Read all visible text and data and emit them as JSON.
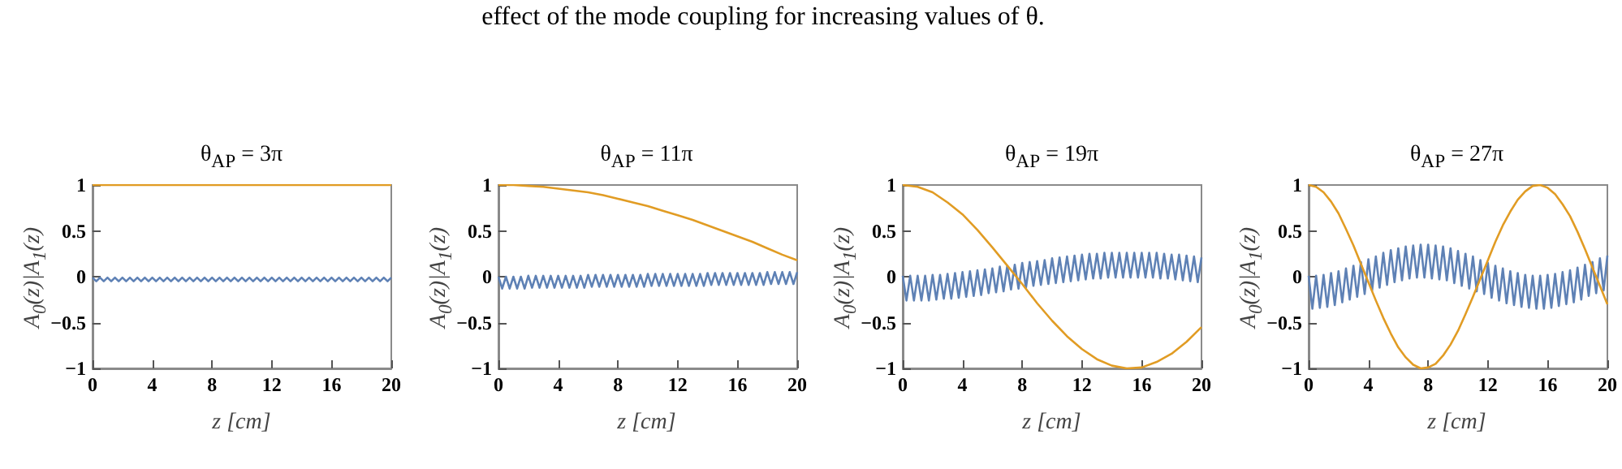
{
  "chart_data": [
    {
      "type": "line",
      "title": "θ$_{AP}$ = 3π",
      "xlabel": "z [cm]",
      "ylabel": "A$_{0}$(z)|A$_{1}$(z)",
      "annotations": [
        "effect of the mode coupling for increasing values of θ."
      ],
      "xlim": [
        0,
        20
      ],
      "ylim": [
        -1,
        1
      ],
      "xticks": [
        0,
        4,
        8,
        12,
        16,
        20
      ],
      "yticks": [
        -1,
        -0.5,
        0,
        0.5,
        1
      ],
      "grid": false,
      "x": [
        0,
        0.25,
        0.5,
        0.75,
        1,
        1.25,
        1.5,
        1.75,
        2,
        2.25,
        2.5,
        2.75,
        3,
        3.25,
        3.5,
        3.75,
        4,
        4.25,
        4.5,
        4.75,
        5,
        5.25,
        5.5,
        5.75,
        6,
        6.25,
        6.5,
        6.75,
        7,
        7.25,
        7.5,
        7.75,
        8,
        8.25,
        8.5,
        8.75,
        9,
        9.25,
        9.5,
        9.75,
        10,
        10.25,
        10.5,
        10.75,
        11,
        11.25,
        11.5,
        11.75,
        12,
        12.25,
        12.5,
        12.75,
        13,
        13.25,
        13.5,
        13.75,
        14,
        14.25,
        14.5,
        14.75,
        15,
        15.25,
        15.5,
        15.75,
        16,
        16.25,
        16.5,
        16.75,
        17,
        17.25,
        17.5,
        17.75,
        18,
        18.25,
        18.5,
        18.75,
        19,
        19.25,
        19.5,
        19.75,
        20
      ],
      "series": [
        {
          "color": "#5e81b5",
          "values": [
            -0.01,
            -0.05,
            -0.01,
            -0.05,
            -0.01,
            -0.05,
            -0.01,
            -0.05,
            -0.01,
            -0.05,
            -0.01,
            -0.05,
            -0.01,
            -0.05,
            -0.01,
            -0.05,
            -0.01,
            -0.05,
            -0.01,
            -0.05,
            -0.01,
            -0.05,
            -0.01,
            -0.05,
            -0.01,
            -0.05,
            -0.01,
            -0.05,
            -0.01,
            -0.05,
            -0.01,
            -0.05,
            -0.01,
            -0.05,
            -0.01,
            -0.05,
            -0.01,
            -0.05,
            -0.01,
            -0.05,
            -0.01,
            -0.05,
            -0.01,
            -0.05,
            -0.01,
            -0.05,
            -0.01,
            -0.05,
            -0.01,
            -0.05,
            -0.01,
            -0.05,
            -0.01,
            -0.05,
            -0.01,
            -0.05,
            -0.01,
            -0.05,
            -0.01,
            -0.05,
            -0.01,
            -0.05,
            -0.01,
            -0.05,
            -0.01,
            -0.05,
            -0.01,
            -0.05,
            -0.01,
            -0.05,
            -0.01,
            -0.05,
            -0.01,
            -0.05,
            -0.01,
            -0.05,
            -0.01,
            -0.05,
            -0.01,
            -0.05,
            -0.01
          ]
        },
        {
          "color": "#e19c24",
          "x": [
            0,
            20
          ],
          "values": [
            1,
            1
          ]
        }
      ]
    },
    {
      "type": "line",
      "title": "θ$_{AP}$ = 11π",
      "xlabel": "z [cm]",
      "ylabel": "A$_{0}$(z)|A$_{1}$(z)",
      "xlim": [
        0,
        20
      ],
      "ylim": [
        -1,
        1
      ],
      "xticks": [
        0,
        4,
        8,
        12,
        16,
        20
      ],
      "yticks": [
        -1,
        -0.5,
        0,
        0.5,
        1
      ],
      "grid": false,
      "x": [
        0,
        0.25,
        0.5,
        0.75,
        1,
        1.25,
        1.5,
        1.75,
        2,
        2.25,
        2.5,
        2.75,
        3,
        3.25,
        3.5,
        3.75,
        4,
        4.25,
        4.5,
        4.75,
        5,
        5.25,
        5.5,
        5.75,
        6,
        6.25,
        6.5,
        6.75,
        7,
        7.25,
        7.5,
        7.75,
        8,
        8.25,
        8.5,
        8.75,
        9,
        9.25,
        9.5,
        9.75,
        10,
        10.25,
        10.5,
        10.75,
        11,
        11.25,
        11.5,
        11.75,
        12,
        12.25,
        12.5,
        12.75,
        13,
        13.25,
        13.5,
        13.75,
        14,
        14.25,
        14.5,
        14.75,
        15,
        15.25,
        15.5,
        15.75,
        16,
        16.25,
        16.5,
        16.75,
        17,
        17.25,
        17.5,
        17.75,
        18,
        18.25,
        18.5,
        18.75,
        19,
        19.25,
        19.5,
        19.75,
        20
      ],
      "series": [
        {
          "color": "#5e81b5",
          "values": [
            0,
            -0.13,
            0,
            -0.13,
            0,
            -0.13,
            0,
            -0.13,
            0.01,
            -0.12,
            0.01,
            -0.12,
            0.01,
            -0.12,
            0.01,
            -0.12,
            0.01,
            -0.12,
            0.01,
            -0.12,
            0.01,
            -0.12,
            0.01,
            -0.12,
            0.02,
            -0.11,
            0.02,
            -0.11,
            0.02,
            -0.11,
            0.02,
            -0.11,
            0.02,
            -0.11,
            0.02,
            -0.11,
            0.02,
            -0.11,
            0.02,
            -0.11,
            0.03,
            -0.1,
            0.03,
            -0.1,
            0.03,
            -0.1,
            0.03,
            -0.1,
            0.03,
            -0.1,
            0.03,
            -0.1,
            0.03,
            -0.1,
            0.03,
            -0.1,
            0.04,
            -0.09,
            0.04,
            -0.09,
            0.04,
            -0.09,
            0.04,
            -0.09,
            0.04,
            -0.09,
            0.04,
            -0.09,
            0.04,
            -0.09,
            0.04,
            -0.09,
            0.05,
            -0.08,
            0.05,
            -0.08,
            0.05,
            -0.08,
            0.05,
            -0.08,
            0.05
          ]
        },
        {
          "color": "#e19c24",
          "x": [
            0,
            1,
            2,
            3,
            4,
            5,
            6,
            7,
            8,
            9,
            10,
            11,
            12,
            13,
            14,
            15,
            16,
            17,
            18,
            19,
            20
          ],
          "values": [
            1,
            1,
            0.99,
            0.98,
            0.96,
            0.94,
            0.92,
            0.89,
            0.85,
            0.81,
            0.77,
            0.72,
            0.67,
            0.62,
            0.56,
            0.5,
            0.44,
            0.38,
            0.31,
            0.24,
            0.18
          ]
        }
      ]
    },
    {
      "type": "line",
      "title": "θ$_{AP}$ = 19π",
      "xlabel": "z [cm]",
      "ylabel": "A$_{0}$(z)|A$_{1}$(z)",
      "xlim": [
        0,
        20
      ],
      "ylim": [
        -1,
        1
      ],
      "xticks": [
        0,
        4,
        8,
        12,
        16,
        20
      ],
      "yticks": [
        -1,
        -0.5,
        0,
        0.5,
        1
      ],
      "grid": false,
      "x": [
        0,
        0.25,
        0.5,
        0.75,
        1,
        1.25,
        1.5,
        1.75,
        2,
        2.25,
        2.5,
        2.75,
        3,
        3.25,
        3.5,
        3.75,
        4,
        4.25,
        4.5,
        4.75,
        5,
        5.25,
        5.5,
        5.75,
        6,
        6.25,
        6.5,
        6.75,
        7,
        7.25,
        7.5,
        7.75,
        8,
        8.25,
        8.5,
        8.75,
        9,
        9.25,
        9.5,
        9.75,
        10,
        10.25,
        10.5,
        10.75,
        11,
        11.25,
        11.5,
        11.75,
        12,
        12.25,
        12.5,
        12.75,
        13,
        13.25,
        13.5,
        13.75,
        14,
        14.25,
        14.5,
        14.75,
        15,
        15.25,
        15.5,
        15.75,
        16,
        16.25,
        16.5,
        16.75,
        17,
        17.25,
        17.5,
        17.75,
        18,
        18.25,
        18.5,
        18.75,
        19,
        19.25,
        19.5,
        19.75,
        20
      ],
      "series": [
        {
          "color": "#5e81b5",
          "values": [
            0.01,
            -0.26,
            0.01,
            -0.26,
            0.01,
            -0.26,
            0.01,
            -0.26,
            0.02,
            -0.25,
            0.02,
            -0.24,
            0.03,
            -0.24,
            0.04,
            -0.23,
            0.05,
            -0.22,
            0.06,
            -0.21,
            0.07,
            -0.2,
            0.08,
            -0.18,
            0.09,
            -0.17,
            0.11,
            -0.16,
            0.12,
            -0.14,
            0.13,
            -0.13,
            0.15,
            -0.12,
            0.16,
            -0.1,
            0.17,
            -0.09,
            0.18,
            -0.08,
            0.2,
            -0.07,
            0.21,
            -0.06,
            0.22,
            -0.05,
            0.23,
            -0.04,
            0.24,
            -0.03,
            0.25,
            -0.02,
            0.25,
            -0.02,
            0.26,
            -0.01,
            0.26,
            -0.01,
            0.26,
            -0.01,
            0.26,
            -0.01,
            0.26,
            -0.01,
            0.26,
            -0.01,
            0.26,
            -0.01,
            0.26,
            -0.02,
            0.25,
            -0.02,
            0.24,
            -0.03,
            0.24,
            -0.04,
            0.23,
            -0.05,
            0.22,
            -0.06,
            0.21
          ]
        },
        {
          "color": "#e19c24",
          "x": [
            0,
            1,
            2,
            3,
            4,
            5,
            6,
            7,
            8,
            9,
            10,
            11,
            12,
            13,
            14,
            15,
            16,
            17,
            18,
            19,
            20
          ],
          "values": [
            1,
            0.98,
            0.92,
            0.81,
            0.68,
            0.51,
            0.32,
            0.12,
            -0.08,
            -0.29,
            -0.48,
            -0.65,
            -0.79,
            -0.9,
            -0.97,
            -1,
            -0.99,
            -0.93,
            -0.84,
            -0.71,
            -0.55
          ]
        }
      ]
    },
    {
      "type": "line",
      "title": "θ$_{AP}$ = 27π",
      "xlabel": "z [cm]",
      "ylabel": "A$_{0}$(z)|A$_{1}$(z)",
      "xlim": [
        0,
        20
      ],
      "ylim": [
        -1,
        1
      ],
      "xticks": [
        0,
        4,
        8,
        12,
        16,
        20
      ],
      "yticks": [
        -1,
        -0.5,
        0,
        0.5,
        1
      ],
      "grid": false,
      "x": [
        0,
        0.25,
        0.5,
        0.75,
        1,
        1.25,
        1.5,
        1.75,
        2,
        2.25,
        2.5,
        2.75,
        3,
        3.25,
        3.5,
        3.75,
        4,
        4.25,
        4.5,
        4.75,
        5,
        5.25,
        5.5,
        5.75,
        6,
        6.25,
        6.5,
        6.75,
        7,
        7.25,
        7.5,
        7.75,
        8,
        8.25,
        8.5,
        8.75,
        9,
        9.25,
        9.5,
        9.75,
        10,
        10.25,
        10.5,
        10.75,
        11,
        11.25,
        11.5,
        11.75,
        12,
        12.25,
        12.5,
        12.75,
        13,
        13.25,
        13.5,
        13.75,
        14,
        14.25,
        14.5,
        14.75,
        15,
        15.25,
        15.5,
        15.75,
        16,
        16.25,
        16.5,
        16.75,
        17,
        17.25,
        17.5,
        17.75,
        18,
        18.25,
        18.5,
        18.75,
        19,
        19.25,
        19.5,
        19.75,
        20
      ],
      "series": [
        {
          "color": "#5e81b5",
          "values": [
            0.01,
            -0.35,
            0.01,
            -0.34,
            0.02,
            -0.33,
            0.04,
            -0.31,
            0.06,
            -0.28,
            0.09,
            -0.25,
            0.12,
            -0.22,
            0.16,
            -0.19,
            0.19,
            -0.15,
            0.22,
            -0.12,
            0.26,
            -0.09,
            0.29,
            -0.06,
            0.31,
            -0.04,
            0.33,
            -0.02,
            0.34,
            -0.01,
            0.35,
            -0.01,
            0.35,
            -0.02,
            0.34,
            -0.03,
            0.33,
            -0.04,
            0.31,
            -0.07,
            0.28,
            -0.1,
            0.25,
            -0.13,
            0.22,
            -0.16,
            0.18,
            -0.19,
            0.15,
            -0.23,
            0.12,
            -0.26,
            0.09,
            -0.29,
            0.06,
            -0.31,
            0.04,
            -0.33,
            0.02,
            -0.34,
            0.01,
            -0.35,
            0.01,
            -0.35,
            0.02,
            -0.34,
            0.03,
            -0.32,
            0.05,
            -0.3,
            0.07,
            -0.28,
            0.1,
            -0.25,
            0.13,
            -0.21,
            0.16,
            -0.18,
            0.2,
            -0.15,
            0.23
          ]
        },
        {
          "color": "#e19c24",
          "x": [
            0,
            0.5,
            1,
            1.5,
            2,
            2.5,
            3,
            3.5,
            4,
            4.5,
            5,
            5.5,
            6,
            6.5,
            7,
            7.5,
            8,
            8.5,
            9,
            9.5,
            10,
            10.5,
            11,
            11.5,
            12,
            12.5,
            13,
            13.5,
            14,
            14.5,
            15,
            15.5,
            16,
            16.5,
            17,
            17.5,
            18,
            18.5,
            19,
            19.5,
            20
          ],
          "values": [
            1,
            0.98,
            0.92,
            0.82,
            0.69,
            0.52,
            0.34,
            0.14,
            -0.06,
            -0.26,
            -0.45,
            -0.62,
            -0.77,
            -0.88,
            -0.96,
            -1,
            -0.99,
            -0.95,
            -0.86,
            -0.74,
            -0.59,
            -0.41,
            -0.22,
            -0.02,
            0.18,
            0.38,
            0.56,
            0.71,
            0.84,
            0.93,
            0.99,
            1,
            0.97,
            0.9,
            0.79,
            0.66,
            0.49,
            0.3,
            0.1,
            -0.1,
            -0.3
          ]
        }
      ]
    }
  ]
}
